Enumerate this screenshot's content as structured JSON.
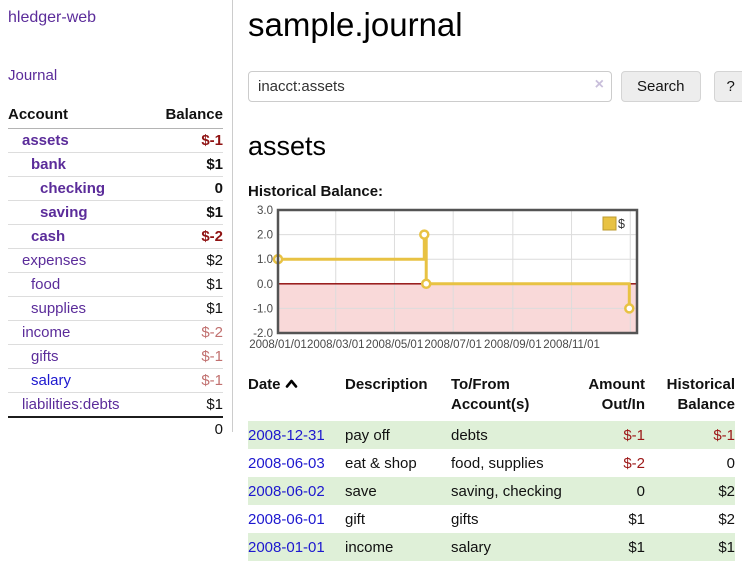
{
  "app": {
    "brand": "hledger-web"
  },
  "nav": {
    "journal": "Journal"
  },
  "sidebar": {
    "header": {
      "account": "Account",
      "balance": "Balance"
    },
    "accounts": [
      {
        "name": "assets",
        "balance": "$-1",
        "depth": 0,
        "bold": true,
        "neg": "strong",
        "color": "purple"
      },
      {
        "name": "bank",
        "balance": "$1",
        "depth": 1,
        "bold": true,
        "neg": null,
        "color": "purple"
      },
      {
        "name": "checking",
        "balance": "0",
        "depth": 2,
        "bold": true,
        "neg": null,
        "color": "purple"
      },
      {
        "name": "saving",
        "balance": "$1",
        "depth": 2,
        "bold": true,
        "neg": null,
        "color": "purple"
      },
      {
        "name": "cash",
        "balance": "$-2",
        "depth": 1,
        "bold": true,
        "neg": "strong",
        "color": "purple"
      },
      {
        "name": "expenses",
        "balance": "$2",
        "depth": 0,
        "bold": false,
        "neg": null,
        "color": "purple"
      },
      {
        "name": "food",
        "balance": "$1",
        "depth": 1,
        "bold": false,
        "neg": null,
        "color": "purple"
      },
      {
        "name": "supplies",
        "balance": "$1",
        "depth": 1,
        "bold": false,
        "neg": null,
        "color": "purple"
      },
      {
        "name": "income",
        "balance": "$-2",
        "depth": 0,
        "bold": false,
        "neg": "soft",
        "color": "purple"
      },
      {
        "name": "gifts",
        "balance": "$-1",
        "depth": 1,
        "bold": false,
        "neg": "soft",
        "color": "purple"
      },
      {
        "name": "salary",
        "balance": "$-1",
        "depth": 1,
        "bold": false,
        "neg": "soft",
        "color": "blue"
      },
      {
        "name": "liabilities:debts",
        "balance": "$1",
        "depth": 0,
        "bold": false,
        "neg": null,
        "color": "purple"
      }
    ],
    "total": "0"
  },
  "main": {
    "title": "sample.journal"
  },
  "search": {
    "value": "inacct:assets",
    "clear_icon": "×",
    "button_label": "Search",
    "help_label": "?"
  },
  "account_view": {
    "heading": "assets",
    "chart_title": "Historical Balance:"
  },
  "chart_data": {
    "type": "line",
    "step": true,
    "series": [
      {
        "name": "$",
        "color": "#e8c243",
        "points": [
          [
            "2008-01-01",
            1.0
          ],
          [
            "2008-06-01",
            2.0
          ],
          [
            "2008-06-03",
            0.0
          ],
          [
            "2008-12-31",
            -1.0
          ]
        ]
      }
    ],
    "ylim": [
      -2.0,
      3.0
    ],
    "ytick_labels": [
      "3.0",
      "2.0",
      "1.0",
      "0.0",
      "-1.0",
      "-2.0"
    ],
    "xtick_labels": [
      "2008/01/01",
      "2008/03/01",
      "2008/05/01",
      "2008/07/01",
      "2008/09/01",
      "2008/11/01"
    ],
    "xgrid_dates": [
      "2008-03-01",
      "2008-05-01",
      "2008-07-01",
      "2008-09-01",
      "2008-11-01",
      "2009-01-01"
    ],
    "x_domain": [
      "2008-01-01",
      "2009-01-08"
    ],
    "grid": true,
    "legend": {
      "label": "$",
      "position": "top-right"
    },
    "negative_region_color": "#f9d9d9",
    "zero_line_color": "#8b0000",
    "axis_text_color": "#4a4a4a",
    "border_color": "#545454"
  },
  "register": {
    "headers": [
      "Date",
      "Description",
      "To/From Account(s)",
      "Amount Out/In",
      "Historical Balance"
    ],
    "rows": [
      {
        "date": "2008-12-31",
        "description": "pay off",
        "accounts": "debts",
        "amount": "$-1",
        "balance": "$-1"
      },
      {
        "date": "2008-06-03",
        "description": "eat & shop",
        "accounts": "food, supplies",
        "amount": "$-2",
        "balance": "0"
      },
      {
        "date": "2008-06-02",
        "description": "save",
        "accounts": "saving, checking",
        "amount": "0",
        "balance": "$2"
      },
      {
        "date": "2008-06-01",
        "description": "gift",
        "accounts": "gifts",
        "amount": "$1",
        "balance": "$2"
      },
      {
        "date": "2008-01-01",
        "description": "income",
        "accounts": "salary",
        "amount": "$1",
        "balance": "$1"
      }
    ]
  }
}
